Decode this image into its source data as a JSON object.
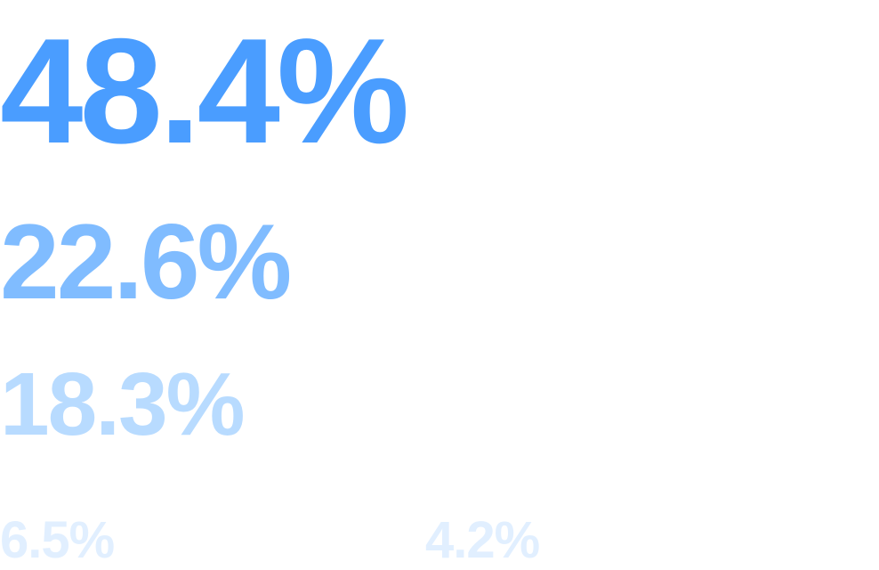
{
  "values": [
    {
      "label": "48.4%",
      "color": "#4a9dff"
    },
    {
      "label": "22.6%",
      "color": "#80bcff"
    },
    {
      "label": "18.3%",
      "color": "#b8dbff"
    },
    {
      "label": "6.5%",
      "color": "#e1efff"
    },
    {
      "label": "4.2%",
      "color": "#e1efff"
    }
  ]
}
